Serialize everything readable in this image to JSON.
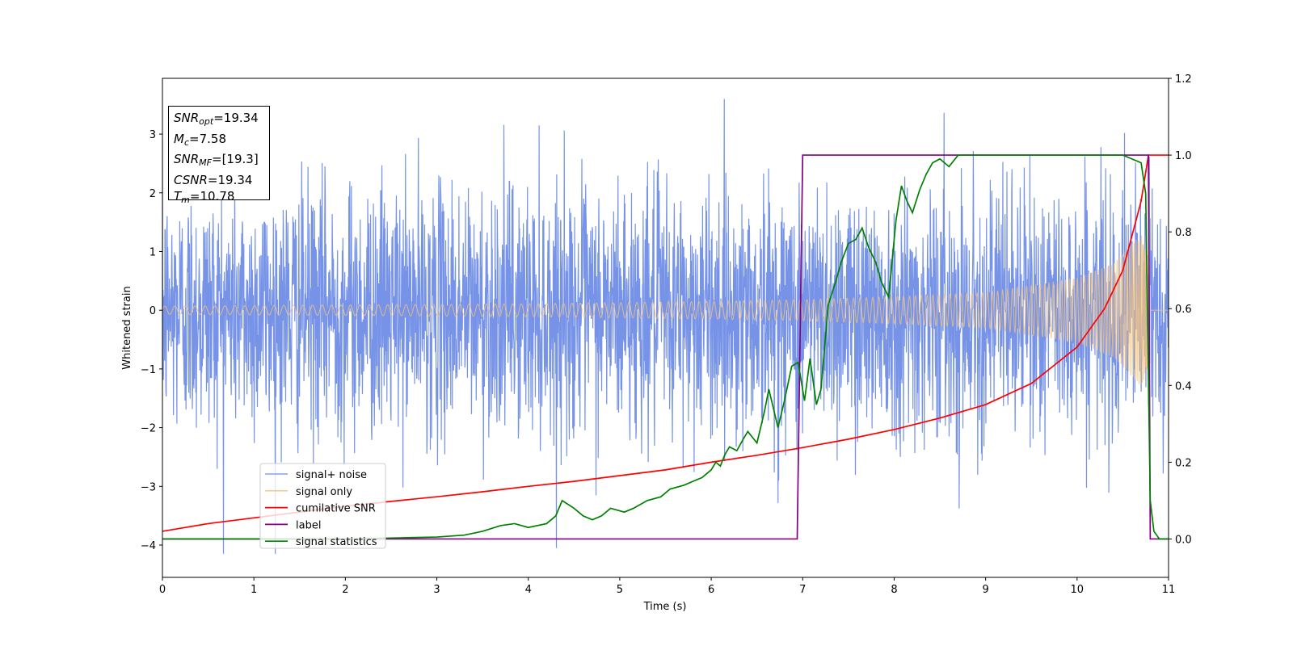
{
  "chart_data": {
    "type": "line",
    "title": "",
    "xlabel": "Time (s)",
    "ylabel": "Whitened strain",
    "xlim": [
      0,
      11
    ],
    "ylim_left": [
      -4.55,
      3.95
    ],
    "ylim_right": [
      -0.1,
      1.2
    ],
    "x_ticks": [
      "0",
      "1",
      "2",
      "3",
      "4",
      "5",
      "6",
      "7",
      "8",
      "9",
      "10",
      "11"
    ],
    "y_left_ticks": [
      "−4",
      "−3",
      "−2",
      "−1",
      "0",
      "1",
      "2",
      "3"
    ],
    "y_right_ticks": [
      "0.0",
      "0.2",
      "0.4",
      "0.6",
      "0.8",
      "1.0",
      "1.2"
    ],
    "legend_position": "lower-left",
    "series": [
      {
        "name": "signal+ noise",
        "color": "#6f8de6",
        "axis": "left",
        "description_values": {
          "amplitude_std": 1.0,
          "min": -4.15,
          "max": 3.6
        }
      },
      {
        "name": "signal only",
        "color": "#f5c27a",
        "axis": "left",
        "envelope": {
          "x": [
            0,
            2,
            4,
            6,
            7,
            8,
            9,
            10,
            10.4,
            10.7,
            10.78
          ],
          "amp": [
            0.07,
            0.09,
            0.11,
            0.15,
            0.18,
            0.23,
            0.3,
            0.55,
            0.8,
            1.3,
            1.0
          ]
        }
      },
      {
        "name": "cumilative SNR",
        "color": "#ff0000",
        "axis": "right",
        "x": [
          0,
          0.5,
          1,
          1.5,
          2,
          2.5,
          3,
          3.5,
          4,
          4.5,
          5,
          5.5,
          6,
          6.5,
          7,
          7.5,
          8,
          8.5,
          9,
          9.5,
          10,
          10.3,
          10.5,
          10.7,
          10.78,
          11
        ],
        "y": [
          0.02,
          0.04,
          0.055,
          0.07,
          0.085,
          0.098,
          0.11,
          0.123,
          0.137,
          0.15,
          0.165,
          0.18,
          0.2,
          0.218,
          0.238,
          0.26,
          0.285,
          0.315,
          0.35,
          0.405,
          0.5,
          0.6,
          0.7,
          0.88,
          1.0,
          1.0
        ]
      },
      {
        "name": "label",
        "color": "#800080",
        "axis": "right",
        "x": [
          0,
          6.94,
          7.0,
          10.78,
          10.8,
          11
        ],
        "y": [
          0,
          0,
          1,
          1,
          0,
          0
        ]
      },
      {
        "name": "signal statistics",
        "color": "#008000",
        "axis": "right",
        "x": [
          0,
          1,
          2,
          2.6,
          3,
          3.3,
          3.5,
          3.7,
          3.85,
          4.0,
          4.2,
          4.3,
          4.37,
          4.5,
          4.6,
          4.7,
          4.8,
          4.9,
          5.05,
          5.15,
          5.3,
          5.45,
          5.55,
          5.7,
          5.8,
          5.9,
          6.0,
          6.05,
          6.1,
          6.15,
          6.2,
          6.28,
          6.35,
          6.4,
          6.5,
          6.58,
          6.63,
          6.68,
          6.73,
          6.8,
          6.88,
          6.95,
          7.02,
          7.08,
          7.15,
          7.2,
          7.28,
          7.36,
          7.42,
          7.5,
          7.58,
          7.65,
          7.72,
          7.8,
          7.86,
          7.94,
          8.02,
          8.08,
          8.14,
          8.2,
          8.28,
          8.35,
          8.42,
          8.5,
          8.6,
          8.7,
          8.8,
          9.0,
          9.5,
          10.0,
          10.5,
          10.7,
          10.75,
          10.8,
          10.84,
          10.9,
          11
        ],
        "y": [
          0.0,
          0.0,
          0.0,
          0.003,
          0.005,
          0.01,
          0.02,
          0.035,
          0.04,
          0.03,
          0.04,
          0.06,
          0.1,
          0.08,
          0.06,
          0.05,
          0.06,
          0.08,
          0.07,
          0.08,
          0.1,
          0.11,
          0.13,
          0.14,
          0.15,
          0.16,
          0.18,
          0.2,
          0.19,
          0.22,
          0.24,
          0.23,
          0.26,
          0.28,
          0.25,
          0.33,
          0.39,
          0.34,
          0.29,
          0.36,
          0.45,
          0.46,
          0.36,
          0.47,
          0.35,
          0.39,
          0.61,
          0.67,
          0.72,
          0.77,
          0.78,
          0.81,
          0.76,
          0.72,
          0.67,
          0.63,
          0.83,
          0.92,
          0.88,
          0.85,
          0.91,
          0.95,
          0.98,
          0.99,
          0.97,
          1.0,
          1.0,
          1.0,
          1.0,
          1.0,
          1.0,
          0.98,
          0.9,
          0.1,
          0.02,
          0.0,
          0.0
        ]
      }
    ]
  },
  "infobox": {
    "snr_opt_label": "SNR",
    "snr_opt_sub": "opt",
    "snr_opt_value": "=19.34",
    "mc_label": "M",
    "mc_sub": "c",
    "mc_value": "=7.58",
    "snr_mf_label": "SNR",
    "snr_mf_sub": "MF",
    "snr_mf_value": "=[19.3]",
    "csnr_label": "CSNR",
    "csnr_value": "=19.34",
    "tm_label": "T",
    "tm_sub": "m",
    "tm_value": "=10.78"
  }
}
